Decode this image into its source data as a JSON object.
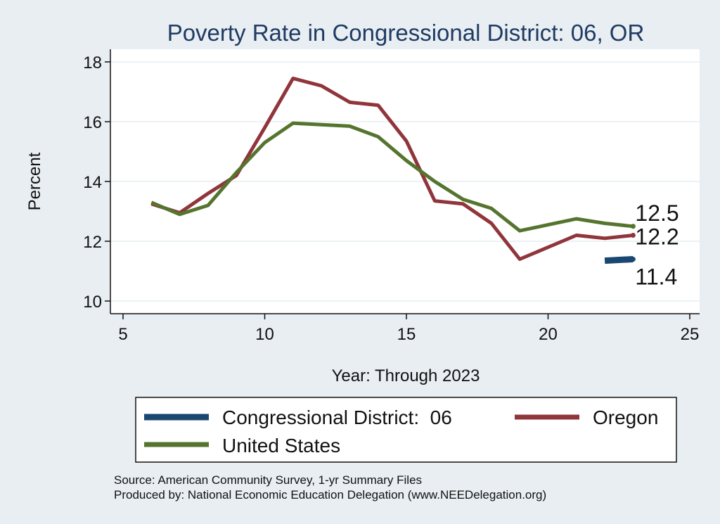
{
  "chart_data": {
    "type": "line",
    "title": "Poverty Rate in Congressional District:  06, OR",
    "xlabel": "Year: Through 2023",
    "ylabel": "Percent",
    "xlim": [
      5,
      25
    ],
    "ylim": [
      10,
      18
    ],
    "xticks": [
      "5",
      "10",
      "15",
      "20",
      "25"
    ],
    "yticks": [
      "10",
      "12",
      "14",
      "16",
      "18"
    ],
    "grid": true,
    "legend_position": "bottom",
    "series": [
      {
        "name": "Congressional District:  06",
        "color": "#1a476f",
        "x": [
          22,
          23
        ],
        "y": [
          11.35,
          11.4
        ],
        "end_label": "11.4"
      },
      {
        "name": "Oregon",
        "color": "#90353b",
        "x": [
          6,
          7,
          8,
          9,
          10,
          11,
          12,
          13,
          14,
          15,
          16,
          17,
          18,
          19,
          20,
          21,
          22,
          23
        ],
        "y": [
          13.25,
          12.95,
          13.6,
          14.2,
          15.8,
          17.45,
          17.2,
          16.65,
          16.55,
          15.35,
          13.35,
          13.25,
          12.6,
          11.4,
          11.8,
          12.2,
          12.1,
          12.2
        ],
        "end_label": "12.2"
      },
      {
        "name": "United States",
        "color": "#55752f",
        "x": [
          6,
          7,
          8,
          9,
          10,
          11,
          12,
          13,
          14,
          15,
          16,
          17,
          18,
          19,
          20,
          21,
          22,
          23
        ],
        "y": [
          13.3,
          12.9,
          13.2,
          14.3,
          15.3,
          15.95,
          15.9,
          15.85,
          15.5,
          14.7,
          14.0,
          13.4,
          13.1,
          12.35,
          12.55,
          12.75,
          12.6,
          12.5
        ],
        "end_label": "12.5"
      }
    ]
  },
  "source_line": "Source: American Community Survey, 1-yr Summary Files",
  "produced_line": "Produced by: National Economic Education Delegation (www.NEEDelegation.org)"
}
